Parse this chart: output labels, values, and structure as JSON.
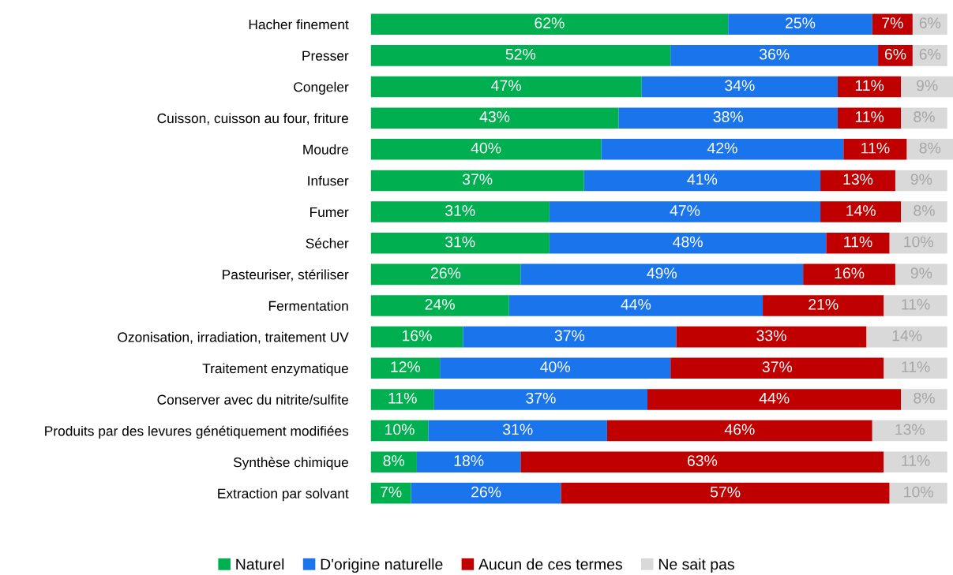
{
  "chart_data": {
    "type": "bar",
    "orientation": "horizontal",
    "stacked": true,
    "legend": "bottom",
    "grid": false,
    "categories": [
      "Hacher finement",
      "Presser",
      "Congeler",
      "Cuisson, cuisson au four, friture",
      "Moudre",
      "Infuser",
      "Fumer",
      "Sécher",
      "Pasteuriser, stériliser",
      "Fermentation",
      "Ozonisation, irradiation, traitement UV",
      "Traitement enzymatique",
      "Conserver avec du nitrite/sulfite",
      "Produits par des levures génétiquement modifiées",
      "Synthèse chimique",
      "Extraction par solvant"
    ],
    "series": [
      {
        "name": "Naturel",
        "color": "#00b050",
        "values": [
          62,
          52,
          47,
          43,
          40,
          37,
          31,
          31,
          26,
          24,
          16,
          12,
          11,
          10,
          8,
          7
        ],
        "value_labels": [
          "62%",
          "52%",
          "47%",
          "43%",
          "40%",
          "37%",
          "31%",
          "31%",
          "26%",
          "24%",
          "16%",
          "12%",
          "11%",
          "10%",
          "8%",
          "7%"
        ]
      },
      {
        "name": "D'origine naturelle",
        "color": "#1a75ec",
        "values": [
          25,
          36,
          34,
          38,
          42,
          41,
          47,
          48,
          49,
          44,
          37,
          40,
          37,
          31,
          18,
          26
        ],
        "value_labels": [
          "25%",
          "36%",
          "34%",
          "38%",
          "42%",
          "41%",
          "47%",
          "48%",
          "49%",
          "44%",
          "37%",
          "40%",
          "37%",
          "31%",
          "18%",
          "26%"
        ]
      },
      {
        "name": "Aucun de ces termes",
        "color": "#c00000",
        "values": [
          7,
          6,
          11,
          11,
          11,
          13,
          14,
          11,
          16,
          21,
          33,
          37,
          44,
          46,
          63,
          57
        ],
        "value_labels": [
          "7%",
          "6%",
          "11%",
          "11%",
          "11%",
          "13%",
          "14%",
          "11%",
          "16%",
          "21%",
          "33%",
          "37%",
          "44%",
          "46%",
          "63%",
          "57%"
        ]
      },
      {
        "name": "Ne sait pas",
        "color": "#d9d9d9",
        "values": [
          6,
          6,
          9,
          8,
          8,
          9,
          8,
          10,
          9,
          11,
          14,
          11,
          8,
          13,
          11,
          10
        ],
        "value_labels": [
          "6%",
          "6%",
          "9%",
          "8%",
          "8%",
          "9%",
          "8%",
          "10%",
          "9%",
          "11%",
          "14%",
          "11%",
          "8%",
          "13%",
          "11%",
          "10%"
        ]
      }
    ]
  }
}
